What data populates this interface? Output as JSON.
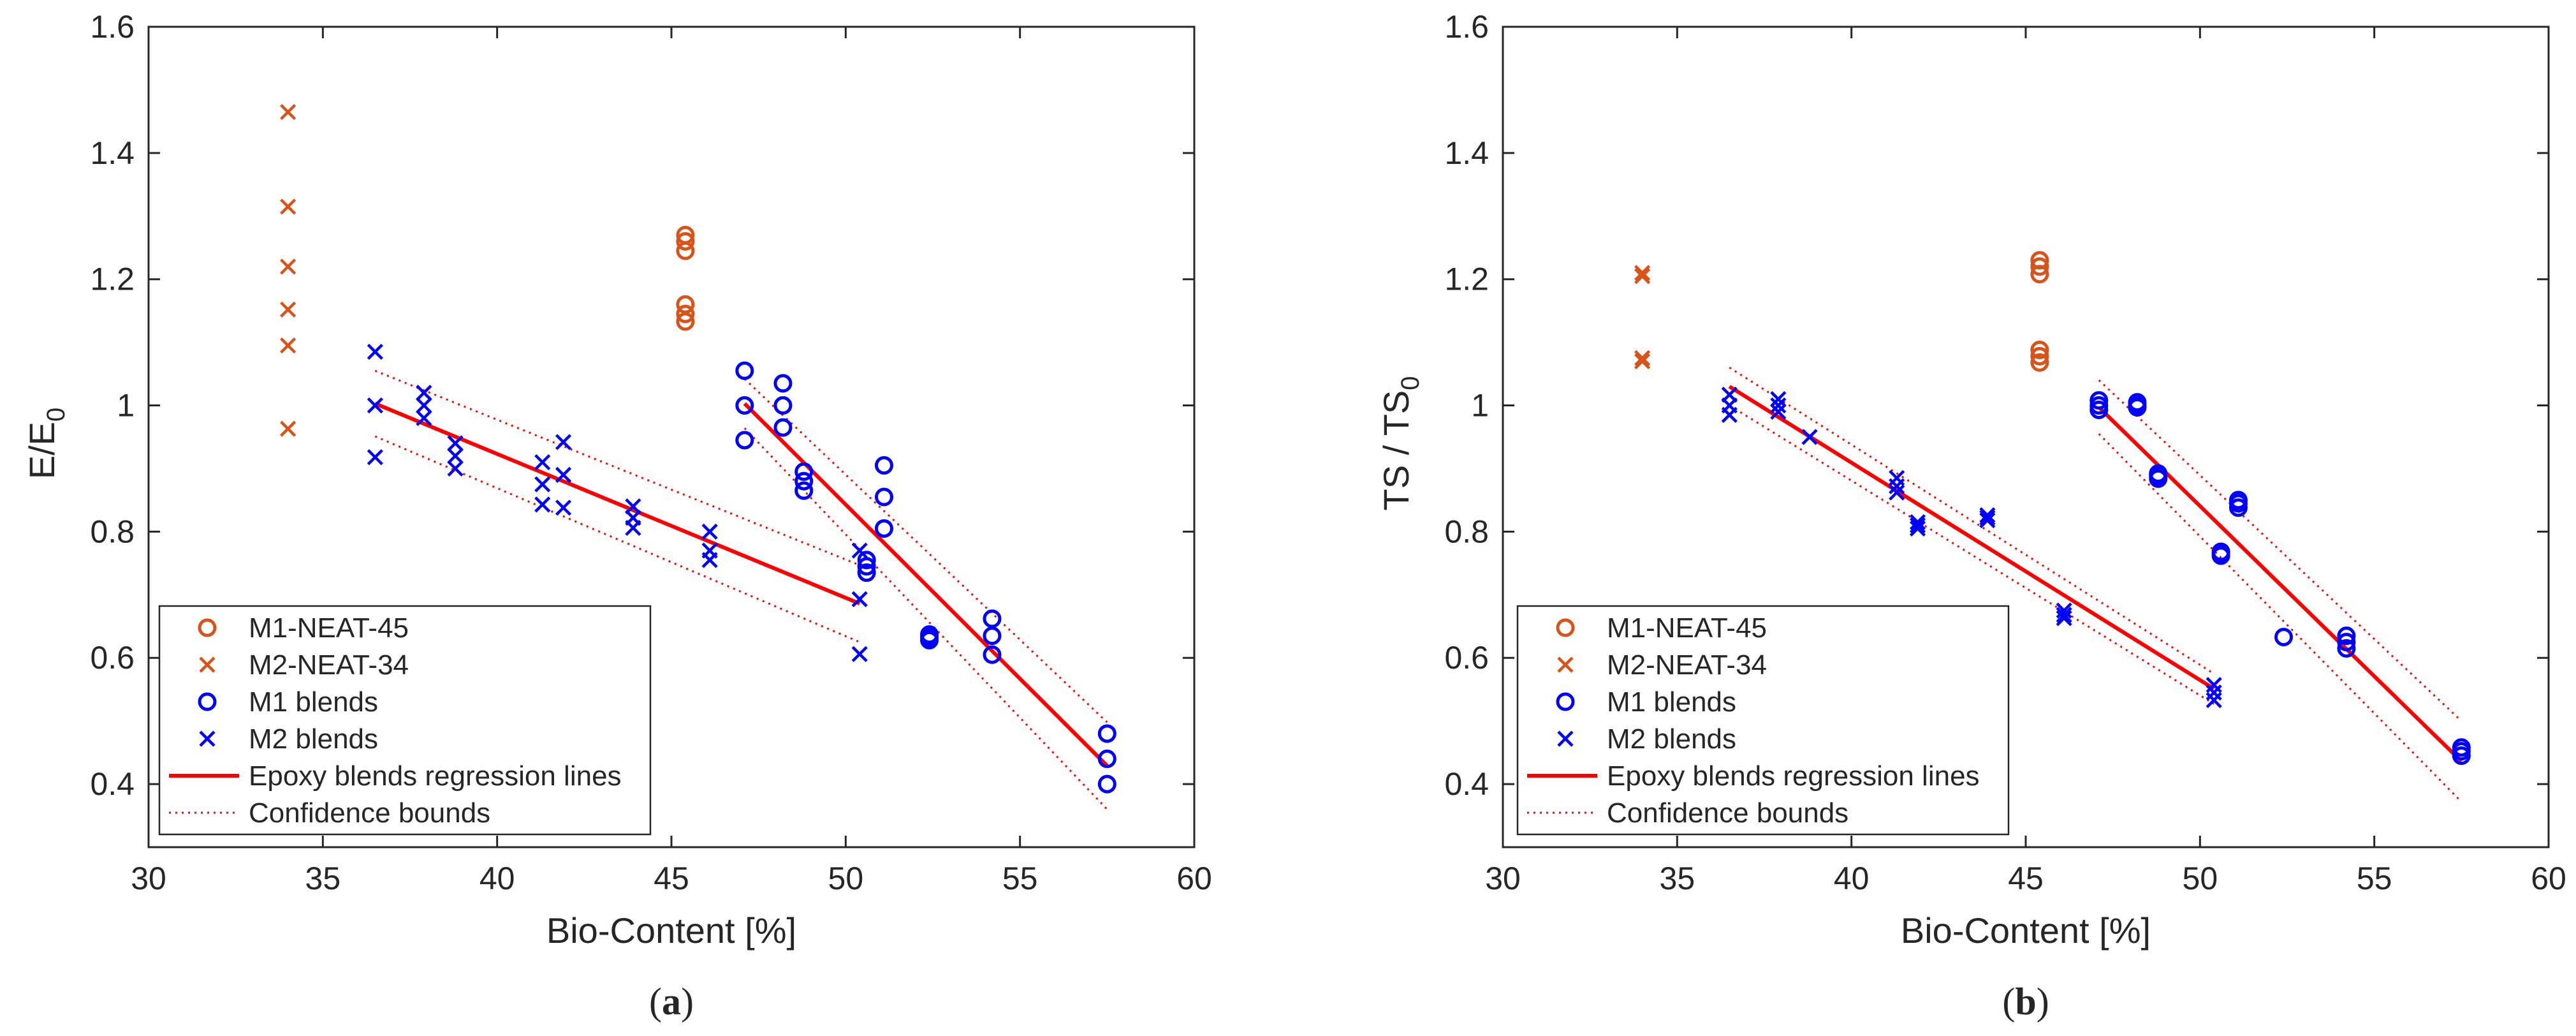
{
  "chart_data": [
    {
      "type": "scatter",
      "panel_label": "(a)",
      "panel_letter": "a",
      "xlabel": "Bio-Content [%]",
      "ylabel": "E/E",
      "ylabel_sub": "0",
      "xlim": [
        30,
        60
      ],
      "ylim": [
        0.3,
        1.6
      ],
      "xticks": [
        "30",
        "35",
        "40",
        "45",
        "50",
        "55",
        "60"
      ],
      "yticks": [
        "0.4",
        "0.6",
        "0.8",
        "1",
        "1.2",
        "1.4",
        "1.6"
      ],
      "legend_position": "bottom-left",
      "series": [
        {
          "name": "M1-NEAT-45",
          "marker": "circle",
          "color": "#d95319",
          "points": [
            [
              45.4,
              1.27
            ],
            [
              45.4,
              1.26
            ],
            [
              45.4,
              1.245
            ],
            [
              45.4,
              1.16
            ],
            [
              45.4,
              1.145
            ],
            [
              45.4,
              1.133
            ]
          ]
        },
        {
          "name": "M2-NEAT-34",
          "marker": "cross",
          "color": "#d95319",
          "points": [
            [
              34,
              1.465
            ],
            [
              34,
              1.315
            ],
            [
              34,
              1.22
            ],
            [
              34,
              1.152
            ],
            [
              34,
              1.095
            ],
            [
              34,
              0.963
            ]
          ]
        },
        {
          "name": "M1 blends",
          "marker": "circle",
          "color": "#0000ff",
          "points": [
            [
              47.1,
              1.055
            ],
            [
              47.1,
              1.0
            ],
            [
              47.1,
              0.945
            ],
            [
              48.2,
              1.035
            ],
            [
              48.2,
              1.0
            ],
            [
              48.2,
              0.965
            ],
            [
              48.8,
              0.895
            ],
            [
              48.8,
              0.88
            ],
            [
              48.8,
              0.865
            ],
            [
              50.6,
              0.755
            ],
            [
              50.6,
              0.745
            ],
            [
              50.6,
              0.735
            ],
            [
              51.1,
              0.905
            ],
            [
              51.1,
              0.855
            ],
            [
              51.1,
              0.805
            ],
            [
              52.4,
              0.637
            ],
            [
              52.4,
              0.633
            ],
            [
              52.4,
              0.628
            ],
            [
              54.2,
              0.662
            ],
            [
              54.2,
              0.635
            ],
            [
              54.2,
              0.605
            ],
            [
              57.5,
              0.48
            ],
            [
              57.5,
              0.44
            ],
            [
              57.5,
              0.4
            ]
          ]
        },
        {
          "name": "M2 blends",
          "marker": "cross",
          "color": "#0000ff",
          "points": [
            [
              36.5,
              1.085
            ],
            [
              36.5,
              1.0
            ],
            [
              36.5,
              0.918
            ],
            [
              37.9,
              1.02
            ],
            [
              37.9,
              1.0
            ],
            [
              37.9,
              0.98
            ],
            [
              38.8,
              0.94
            ],
            [
              38.8,
              0.92
            ],
            [
              38.8,
              0.9
            ],
            [
              41.3,
              0.91
            ],
            [
              41.3,
              0.875
            ],
            [
              41.3,
              0.843
            ],
            [
              41.9,
              0.942
            ],
            [
              41.9,
              0.89
            ],
            [
              41.9,
              0.838
            ],
            [
              43.9,
              0.84
            ],
            [
              43.9,
              0.822
            ],
            [
              43.9,
              0.806
            ],
            [
              46.1,
              0.8
            ],
            [
              46.1,
              0.77
            ],
            [
              46.1,
              0.755
            ],
            [
              50.4,
              0.77
            ],
            [
              50.4,
              0.693
            ],
            [
              50.4,
              0.606
            ]
          ]
        }
      ],
      "regression_lines": [
        {
          "x": [
            36.5,
            50.4
          ],
          "y": [
            1.003,
            0.686
          ]
        },
        {
          "x": [
            47.1,
            57.5
          ],
          "y": [
            1.003,
            0.429
          ]
        }
      ],
      "confidence_bounds": [
        {
          "x": [
            36.5,
            50.4
          ],
          "upper": [
            1.055,
            0.747
          ],
          "lower": [
            0.951,
            0.625
          ]
        },
        {
          "x": [
            47.1,
            57.5
          ],
          "upper": [
            1.042,
            0.498
          ],
          "lower": [
            0.964,
            0.36
          ]
        }
      ]
    },
    {
      "type": "scatter",
      "panel_label": "(b)",
      "panel_letter": "b",
      "xlabel": "Bio-Content [%]",
      "ylabel": "TS / TS",
      "ylabel_sub": "0",
      "xlim": [
        30,
        60
      ],
      "ylim": [
        0.3,
        1.6
      ],
      "xticks": [
        "30",
        "35",
        "40",
        "45",
        "50",
        "55",
        "60"
      ],
      "yticks": [
        "0.4",
        "0.6",
        "0.8",
        "1",
        "1.2",
        "1.4",
        "1.6"
      ],
      "legend_position": "bottom-left",
      "series": [
        {
          "name": "M1-NEAT-45",
          "marker": "circle",
          "color": "#d95319",
          "points": [
            [
              45.4,
              1.23
            ],
            [
              45.4,
              1.22
            ],
            [
              45.4,
              1.208
            ],
            [
              45.4,
              1.088
            ],
            [
              45.4,
              1.078
            ],
            [
              45.4,
              1.068
            ]
          ]
        },
        {
          "name": "M2-NEAT-34",
          "marker": "cross",
          "color": "#d95319",
          "points": [
            [
              34,
              1.21
            ],
            [
              34,
              1.205
            ],
            [
              34,
              1.075
            ],
            [
              34,
              1.07
            ]
          ]
        },
        {
          "name": "M1 blends",
          "marker": "circle",
          "color": "#0000ff",
          "points": [
            [
              47.1,
              1.008
            ],
            [
              47.1,
              1.0
            ],
            [
              47.1,
              0.993
            ],
            [
              48.2,
              1.005
            ],
            [
              48.2,
              1.0
            ],
            [
              48.2,
              0.997
            ],
            [
              48.8,
              0.892
            ],
            [
              48.8,
              0.888
            ],
            [
              48.8,
              0.884
            ],
            [
              50.6,
              0.768
            ],
            [
              50.6,
              0.765
            ],
            [
              50.6,
              0.762
            ],
            [
              51.1,
              0.85
            ],
            [
              51.1,
              0.845
            ],
            [
              51.1,
              0.838
            ],
            [
              52.4,
              0.633
            ],
            [
              54.2,
              0.635
            ],
            [
              54.2,
              0.625
            ],
            [
              54.2,
              0.615
            ],
            [
              57.5,
              0.458
            ],
            [
              57.5,
              0.452
            ],
            [
              57.5,
              0.445
            ]
          ]
        },
        {
          "name": "M2 blends",
          "marker": "cross",
          "color": "#0000ff",
          "points": [
            [
              36.5,
              1.017
            ],
            [
              36.5,
              1.0
            ],
            [
              36.5,
              0.985
            ],
            [
              37.9,
              1.01
            ],
            [
              37.9,
              1.0
            ],
            [
              37.9,
              0.99
            ],
            [
              38.8,
              0.95
            ],
            [
              41.3,
              0.885
            ],
            [
              41.3,
              0.872
            ],
            [
              41.3,
              0.862
            ],
            [
              41.9,
              0.815
            ],
            [
              41.9,
              0.81
            ],
            [
              41.9,
              0.805
            ],
            [
              43.9,
              0.826
            ],
            [
              43.9,
              0.822
            ],
            [
              43.9,
              0.818
            ],
            [
              46.1,
              0.675
            ],
            [
              46.1,
              0.668
            ],
            [
              46.1,
              0.663
            ],
            [
              50.4,
              0.557
            ],
            [
              50.4,
              0.545
            ],
            [
              50.4,
              0.533
            ]
          ]
        }
      ],
      "regression_lines": [
        {
          "x": [
            36.5,
            50.4
          ],
          "y": [
            1.03,
            0.551
          ]
        },
        {
          "x": [
            47.1,
            57.5
          ],
          "y": [
            0.997,
            0.436
          ]
        }
      ],
      "confidence_bounds": [
        {
          "x": [
            36.5,
            50.4
          ],
          "upper": [
            1.06,
            0.575
          ],
          "lower": [
            1.0,
            0.527
          ]
        },
        {
          "x": [
            47.1,
            57.5
          ],
          "upper": [
            1.04,
            0.5
          ],
          "lower": [
            0.955,
            0.372
          ]
        }
      ]
    }
  ],
  "legend": {
    "items": [
      {
        "label": "M1-NEAT-45",
        "marker": "circle",
        "color": "#d95319"
      },
      {
        "label": "M2-NEAT-34",
        "marker": "cross",
        "color": "#d95319"
      },
      {
        "label": "M1 blends",
        "marker": "circle",
        "color": "#0000ff"
      },
      {
        "label": "M2 blends",
        "marker": "cross",
        "color": "#0000ff"
      },
      {
        "label": "Epoxy blends regression lines",
        "marker": "solid-line",
        "color": "#ff0000"
      },
      {
        "label": "Confidence bounds",
        "marker": "dotted-line",
        "color": "#ff0000"
      }
    ]
  },
  "colors": {
    "axis": "#262626",
    "regression": "#ff0000",
    "m1": "#d95319",
    "m2": "#0000ff"
  }
}
